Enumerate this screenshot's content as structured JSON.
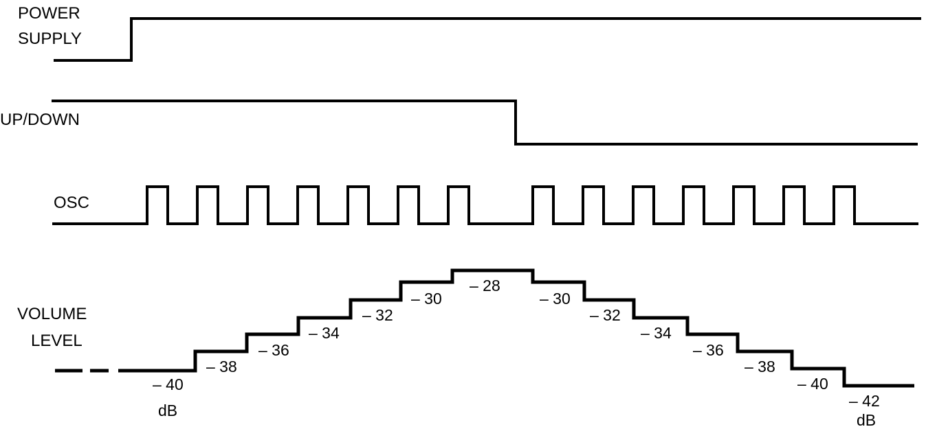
{
  "signals": {
    "power_supply": {
      "line1": "POWER",
      "line2": "SUPPLY"
    },
    "up_down": {
      "label": "UP/DOWN"
    },
    "osc": {
      "label": "OSC"
    },
    "volume_level": {
      "line1": "VOLUME",
      "line2": "LEVEL"
    }
  },
  "volume_steps": [
    {
      "value": "– 40",
      "unit": "dB"
    },
    {
      "value": "– 38"
    },
    {
      "value": "– 36"
    },
    {
      "value": "– 34"
    },
    {
      "value": "– 32"
    },
    {
      "value": "– 30"
    },
    {
      "value": "– 28"
    },
    {
      "value": "– 30"
    },
    {
      "value": "– 32"
    },
    {
      "value": "– 34"
    },
    {
      "value": "– 36"
    },
    {
      "value": "– 38"
    },
    {
      "value": "– 40"
    },
    {
      "value": "– 42",
      "unit": "dB"
    }
  ]
}
